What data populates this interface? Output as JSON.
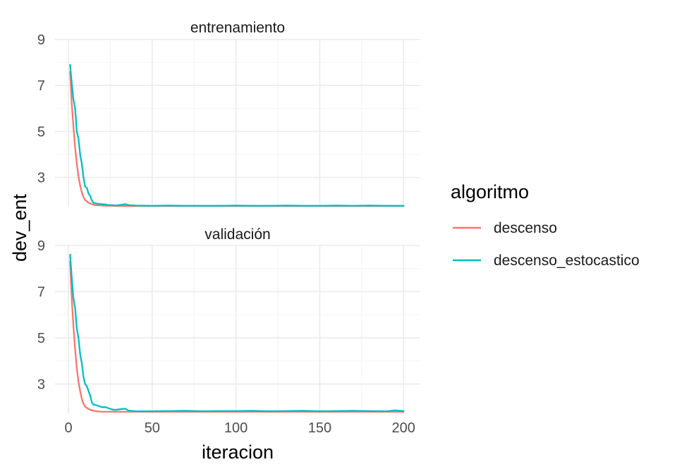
{
  "chart_data": {
    "type": "line",
    "xlabel": "iteracion",
    "ylabel": "dev_ent",
    "xlim": [
      -8,
      210
    ],
    "x_ticks": [
      0,
      50,
      100,
      150,
      200
    ],
    "x_tick_labels": [
      "0",
      "50",
      "100",
      "150",
      "200"
    ],
    "y_ticks": [
      3,
      5,
      7,
      9
    ],
    "y_tick_labels": [
      "3",
      "5",
      "7",
      "9"
    ],
    "grid": true,
    "legend": {
      "title": "algoritmo",
      "position": "right",
      "entries": [
        "descenso",
        "descenso_estocastico"
      ]
    },
    "colors": {
      "descenso": "#F8766D",
      "descenso_estocastico": "#00BFC4"
    },
    "panels": [
      {
        "title": "entrenamiento",
        "ylim": [
          1.7,
          9
        ],
        "series": [
          {
            "name": "descenso",
            "x": [
              1,
              2,
              3,
              4,
              5,
              6,
              7,
              8,
              9,
              10,
              12,
              14,
              16,
              18,
              20,
              22,
              25,
              30,
              35,
              40,
              60,
              100,
              150,
              200
            ],
            "y": [
              7.6,
              6.2,
              5.2,
              4.3,
              3.6,
              3.05,
              2.65,
              2.35,
              2.15,
              2.02,
              1.9,
              1.84,
              1.8,
              1.79,
              1.78,
              1.77,
              1.77,
              1.76,
              1.76,
              1.76,
              1.76,
              1.76,
              1.76,
              1.76
            ]
          },
          {
            "name": "descenso_estocastico",
            "x": [
              1,
              2,
              3,
              4,
              5,
              6,
              7,
              8,
              9,
              10,
              11,
              12,
              13,
              14,
              15,
              16,
              18,
              20,
              22,
              24,
              26,
              28,
              30,
              32,
              34,
              36,
              40,
              50,
              60,
              70,
              80,
              90,
              100,
              110,
              120,
              130,
              140,
              150,
              160,
              170,
              180,
              190,
              200
            ],
            "y": [
              7.9,
              7.1,
              6.4,
              6.0,
              5.0,
              4.7,
              4.0,
              3.6,
              3.0,
              2.6,
              2.55,
              2.3,
              2.2,
              2.0,
              1.9,
              1.88,
              1.85,
              1.84,
              1.83,
              1.8,
              1.8,
              1.78,
              1.8,
              1.82,
              1.84,
              1.8,
              1.78,
              1.77,
              1.78,
              1.77,
              1.77,
              1.77,
              1.78,
              1.77,
              1.77,
              1.78,
              1.77,
              1.77,
              1.78,
              1.77,
              1.78,
              1.77,
              1.77
            ]
          }
        ]
      },
      {
        "title": "validación",
        "ylim": [
          1.7,
          9
        ],
        "series": [
          {
            "name": "descenso",
            "x": [
              1,
              2,
              3,
              4,
              5,
              6,
              7,
              8,
              9,
              10,
              12,
              14,
              16,
              18,
              20,
              22,
              25,
              30,
              35,
              40,
              60,
              100,
              150,
              200
            ],
            "y": [
              8.3,
              6.7,
              5.5,
              4.5,
              3.7,
              3.1,
              2.7,
              2.35,
              2.15,
              2.02,
              1.92,
              1.86,
              1.83,
              1.81,
              1.8,
              1.8,
              1.8,
              1.8,
              1.8,
              1.8,
              1.8,
              1.8,
              1.8,
              1.8
            ]
          },
          {
            "name": "descenso_estocastico",
            "x": [
              1,
              2,
              3,
              4,
              5,
              6,
              7,
              8,
              9,
              10,
              11,
              12,
              13,
              14,
              15,
              16,
              18,
              20,
              22,
              24,
              26,
              28,
              30,
              32,
              34,
              36,
              40,
              50,
              60,
              70,
              80,
              90,
              100,
              110,
              120,
              130,
              140,
              150,
              160,
              170,
              180,
              190,
              195,
              200
            ],
            "y": [
              8.6,
              7.6,
              6.7,
              6.3,
              5.4,
              5.0,
              4.3,
              3.9,
              3.3,
              3.0,
              2.9,
              2.7,
              2.5,
              2.2,
              2.1,
              2.1,
              2.05,
              2.0,
              2.0,
              1.95,
              1.9,
              1.88,
              1.9,
              1.92,
              1.93,
              1.85,
              1.82,
              1.82,
              1.83,
              1.84,
              1.82,
              1.83,
              1.83,
              1.84,
              1.82,
              1.83,
              1.84,
              1.82,
              1.83,
              1.84,
              1.83,
              1.82,
              1.86,
              1.83
            ]
          }
        ]
      }
    ]
  }
}
